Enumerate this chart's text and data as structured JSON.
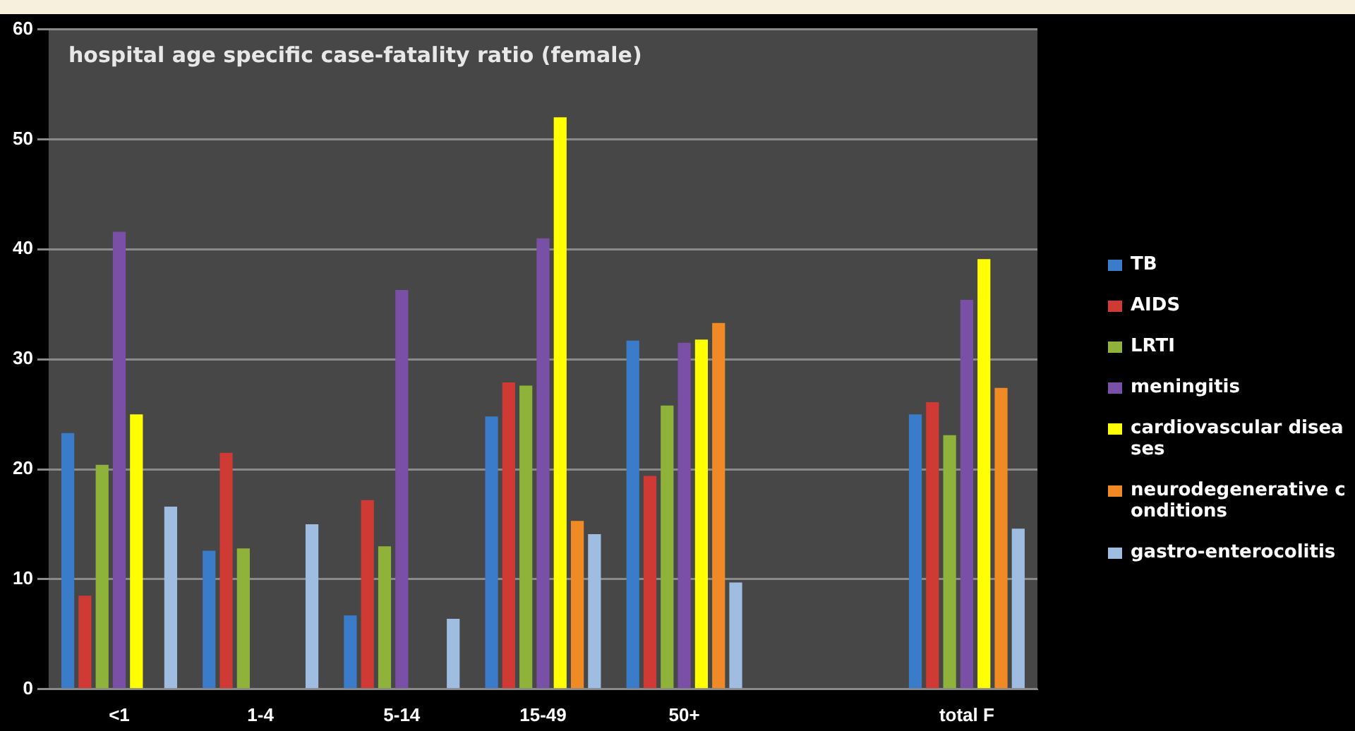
{
  "chart_data": {
    "type": "bar",
    "title": "hospital age specific case-fatality ratio (female)",
    "categories": [
      "<1",
      "1-4",
      "5-14",
      "15-49",
      "50+",
      null,
      "total F"
    ],
    "series": [
      {
        "name": "TB",
        "color": "#3a7cc9",
        "values": [
          23.3,
          12.6,
          6.7,
          24.8,
          31.7,
          null,
          25
        ]
      },
      {
        "name": "AIDS",
        "color": "#d03a35",
        "values": [
          8.5,
          21.5,
          17.2,
          27.9,
          19.4,
          null,
          26.1
        ]
      },
      {
        "name": "LRTI",
        "color": "#8fb23a",
        "values": [
          20.4,
          12.8,
          13,
          27.6,
          25.8,
          null,
          23.1
        ]
      },
      {
        "name": "meningitis",
        "color": "#7a4fa6",
        "values": [
          41.6,
          null,
          36.3,
          41,
          31.5,
          null,
          35.4
        ]
      },
      {
        "name": "cardiovascular diseases",
        "color": "#ffff00",
        "values": [
          25,
          null,
          null,
          52,
          31.8,
          null,
          39.1
        ]
      },
      {
        "name": "neurodegenerative conditions",
        "color": "#f08a24",
        "values": [
          null,
          null,
          null,
          15.3,
          33.3,
          null,
          27.4
        ]
      },
      {
        "name": "gastro-enterocolitis",
        "color": "#9fbde0",
        "values": [
          16.6,
          15,
          6.4,
          14.1,
          9.7,
          null,
          14.6
        ]
      }
    ],
    "ylim": [
      0,
      60
    ],
    "yticks": [
      0,
      10,
      20,
      30,
      40,
      50,
      60
    ],
    "grid": "y",
    "legend": "right"
  }
}
